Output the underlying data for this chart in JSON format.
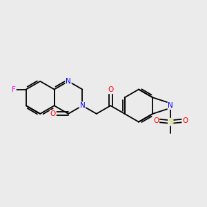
{
  "background_color": "#ebebeb",
  "bond_color": "#000000",
  "atom_colors": {
    "F": "#ff00ff",
    "N": "#0000ff",
    "O": "#ff0000",
    "S": "#cccc00",
    "C": "#000000"
  },
  "figsize": [
    3.0,
    3.0
  ],
  "dpi": 100
}
